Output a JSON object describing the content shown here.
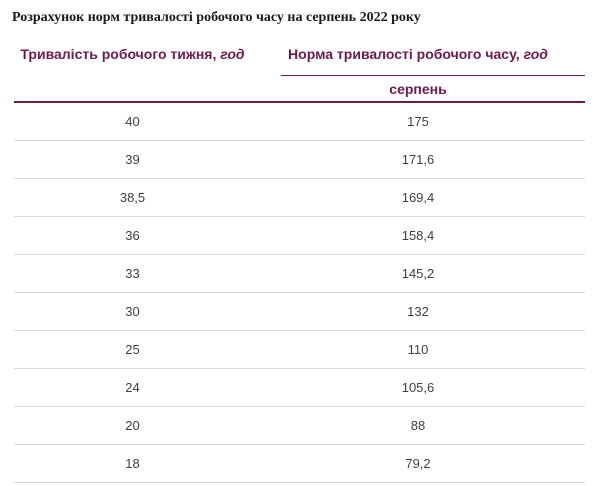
{
  "page": {
    "title": "Розрахунок норм тривалості робочого часу на серпень 2022 року"
  },
  "table": {
    "col1_header": {
      "text": "Тривалість робочого тижня,",
      "unit": "год"
    },
    "col2_header": {
      "text": "Норма тривалості робочого часу,",
      "unit": "год"
    },
    "col2_subheader": "серпень",
    "rows": [
      {
        "week_hours": "40",
        "norm": "175"
      },
      {
        "week_hours": "39",
        "norm": "171,6"
      },
      {
        "week_hours": "38,5",
        "norm": "169,4"
      },
      {
        "week_hours": "36",
        "norm": "158,4"
      },
      {
        "week_hours": "33",
        "norm": "145,2"
      },
      {
        "week_hours": "30",
        "norm": "132"
      },
      {
        "week_hours": "25",
        "norm": "110"
      },
      {
        "week_hours": "24",
        "norm": "105,6"
      },
      {
        "week_hours": "20",
        "norm": "88"
      },
      {
        "week_hours": "18",
        "norm": "79,2"
      }
    ]
  },
  "colors": {
    "accent": "#6d1a4e",
    "row_border": "#d9d9d9",
    "data_text": "#3f3f3f",
    "title_text": "#1a1a1a"
  }
}
